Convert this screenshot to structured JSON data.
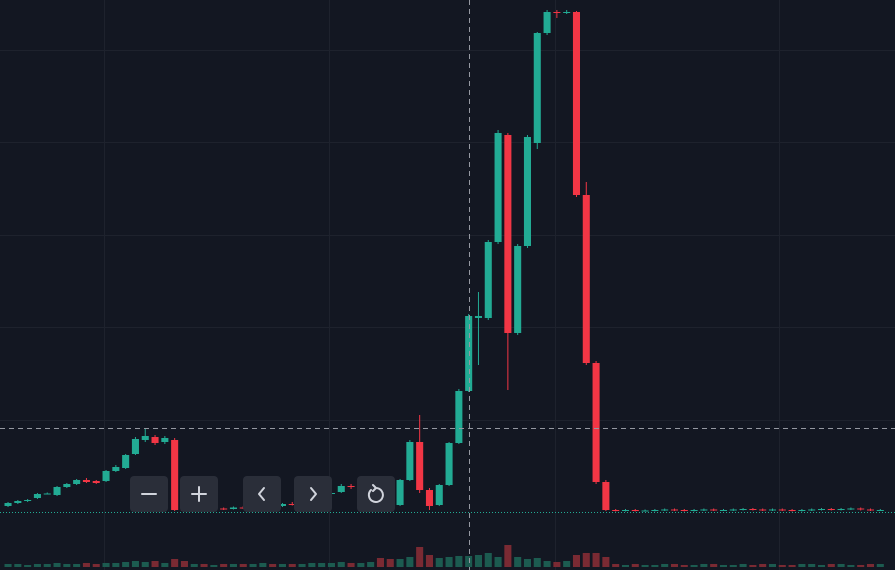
{
  "chart_data": {
    "type": "candlestick",
    "up_color": "#22ab94",
    "down_color": "#f23645",
    "volume_up_color": "#1c5b50",
    "volume_down_color": "#7a2a33",
    "grid": true,
    "xlim": [
      -0.82,
      90.5
    ],
    "xticks": [
      9.8,
      32.7,
      55.8,
      78.7
    ],
    "ylim": [
      0,
      102.4
    ],
    "yticks": [
      18.4,
      37,
      55.4,
      74,
      92.4
    ],
    "volume_ylim": [
      0,
      30
    ],
    "open": [
      1.2,
      1.8,
      2.2,
      2.8,
      3.6,
      3.4,
      5.0,
      5.6,
      6.4,
      6.2,
      6.2,
      8.2,
      8.8,
      11.6,
      14.4,
      15.0,
      14.0,
      14.4,
      3.0,
      0.4,
      0.6,
      0.5,
      0.7,
      0.6,
      0.9,
      0.8,
      1.0,
      1.4,
      1.2,
      1.6,
      1.5,
      1.8,
      2.0,
      3.6,
      4.0,
      5.2,
      5.0,
      5.4,
      6.8,
      2.4,
      1.4,
      6.4,
      14.0,
      4.4,
      1.4,
      5.4,
      13.8,
      24.2,
      38.8,
      38.8,
      54.0,
      75.4,
      35.8,
      53.2,
      73.8,
      95.8,
      100.0,
      99.8,
      100.0,
      63.4,
      29.8,
      6.0,
      0.4,
      0.3,
      0.4,
      0.3,
      0.3,
      0.4,
      0.5,
      0.4,
      0.3,
      0.4,
      0.5,
      0.4,
      0.4,
      0.5,
      0.6,
      0.5,
      0.4,
      0.5,
      0.4,
      0.3,
      0.4,
      0.5,
      0.6,
      0.5,
      0.6,
      0.7,
      0.5,
      0.4
    ],
    "high": [
      2.0,
      2.4,
      2.6,
      3.8,
      3.9,
      5.2,
      5.8,
      6.6,
      6.8,
      6.4,
      8.4,
      9.4,
      11.6,
      15.0,
      16.6,
      15.4,
      15.2,
      14.8,
      3.2,
      0.8,
      0.8,
      0.9,
      0.9,
      1.1,
      1.2,
      1.3,
      1.6,
      1.7,
      1.8,
      2.0,
      2.1,
      2.3,
      2.5,
      4.0,
      5.6,
      5.6,
      5.8,
      6.6,
      7.2,
      2.6,
      6.6,
      14.4,
      19.4,
      4.8,
      5.6,
      14.0,
      24.6,
      39.6,
      44.0,
      54.4,
      76.4,
      75.8,
      53.6,
      75.4,
      96.0,
      100.4,
      100.4,
      100.4,
      100.2,
      66.0,
      30.2,
      6.4,
      0.6,
      0.6,
      0.6,
      0.5,
      0.6,
      0.7,
      0.7,
      0.6,
      0.6,
      0.7,
      0.7,
      0.6,
      0.7,
      0.8,
      0.8,
      0.7,
      0.7,
      0.7,
      0.6,
      0.6,
      0.7,
      0.8,
      0.8,
      0.8,
      0.9,
      0.9,
      0.7,
      0.6
    ],
    "low": [
      1.0,
      1.6,
      2.0,
      2.6,
      3.5,
      3.2,
      4.8,
      5.4,
      5.8,
      5.6,
      6.0,
      8.0,
      8.6,
      11.4,
      14.0,
      13.4,
      13.6,
      0.2,
      0.0,
      0.2,
      0.3,
      0.3,
      0.4,
      0.5,
      0.6,
      0.6,
      0.9,
      1.0,
      1.0,
      1.3,
      1.3,
      1.6,
      1.8,
      3.4,
      3.8,
      4.6,
      4.8,
      5.2,
      2.0,
      0.6,
      1.2,
      6.2,
      3.8,
      0.4,
      1.2,
      5.2,
      13.6,
      24.0,
      29.4,
      38.4,
      53.6,
      24.4,
      35.4,
      52.8,
      72.6,
      95.4,
      98.8,
      99.6,
      63.0,
      29.4,
      5.6,
      0.2,
      0.1,
      0.1,
      0.1,
      0.1,
      0.1,
      0.2,
      0.2,
      0.1,
      0.1,
      0.2,
      0.2,
      0.2,
      0.2,
      0.3,
      0.3,
      0.2,
      0.2,
      0.2,
      0.1,
      0.1,
      0.2,
      0.3,
      0.3,
      0.3,
      0.4,
      0.3,
      0.2,
      0.2
    ],
    "close": [
      1.8,
      2.2,
      2.4,
      3.6,
      3.7,
      5.0,
      5.6,
      6.4,
      6.0,
      5.8,
      8.2,
      9.0,
      11.4,
      14.6,
      15.2,
      13.8,
      14.8,
      0.4,
      0.2,
      0.6,
      0.5,
      0.7,
      0.6,
      0.9,
      0.8,
      1.0,
      1.4,
      1.2,
      1.6,
      1.5,
      1.8,
      2.0,
      2.3,
      3.8,
      5.2,
      5.0,
      5.4,
      6.2,
      2.4,
      0.8,
      6.4,
      14.0,
      4.4,
      1.2,
      5.4,
      13.8,
      24.2,
      39.2,
      39.2,
      54.0,
      75.8,
      35.8,
      53.2,
      75.0,
      95.8,
      100.0,
      99.8,
      100.0,
      63.4,
      29.8,
      6.0,
      0.4,
      0.3,
      0.4,
      0.3,
      0.3,
      0.4,
      0.5,
      0.4,
      0.3,
      0.4,
      0.5,
      0.4,
      0.4,
      0.5,
      0.6,
      0.5,
      0.4,
      0.5,
      0.4,
      0.3,
      0.4,
      0.5,
      0.6,
      0.5,
      0.6,
      0.7,
      0.5,
      0.4,
      0.4
    ],
    "volume": [
      3,
      3,
      2,
      3,
      3,
      4,
      3,
      3,
      4,
      3,
      4,
      4,
      5,
      6,
      5,
      6,
      4,
      8,
      6,
      3,
      3,
      2,
      3,
      3,
      3,
      3,
      4,
      3,
      3,
      3,
      3,
      4,
      4,
      4,
      5,
      4,
      4,
      5,
      9,
      8,
      8,
      10,
      20,
      12,
      9,
      10,
      11,
      11,
      12,
      14,
      10,
      22,
      10,
      8,
      9,
      6,
      5,
      6,
      12,
      14,
      14,
      10,
      3,
      2,
      3,
      2,
      2,
      3,
      3,
      2,
      2,
      3,
      3,
      2,
      2,
      3,
      2,
      3,
      3,
      2,
      2,
      3,
      3,
      2,
      3,
      3,
      2,
      2,
      3,
      3
    ]
  }
}
